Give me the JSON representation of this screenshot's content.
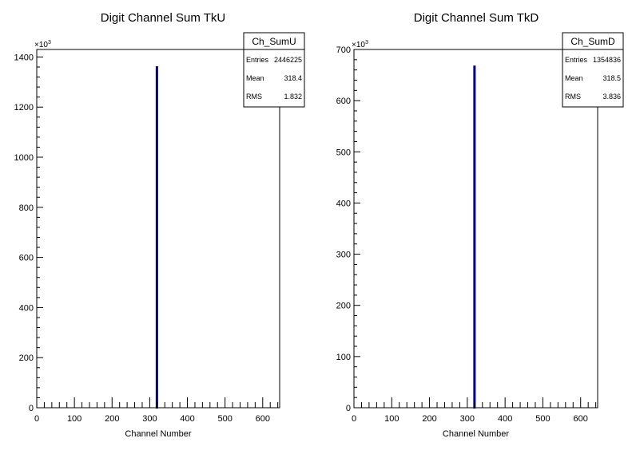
{
  "chart_data": [
    {
      "type": "bar",
      "title": "Digit Channel Sum TkU",
      "xlabel": "Channel Number",
      "ylabel": "",
      "y_multiplier": "×10",
      "y_multiplier_exp": "3",
      "xlim": [
        0,
        645
      ],
      "ylim": [
        0,
        1430
      ],
      "xticks": [
        0,
        100,
        200,
        300,
        400,
        500,
        600
      ],
      "yticks": [
        0,
        200,
        400,
        600,
        800,
        1000,
        1200,
        1400
      ],
      "bars": [
        {
          "x": 318,
          "value": 1360
        }
      ],
      "bar_color": "#000080",
      "stats": {
        "name": "Ch_SumU",
        "rows": [
          {
            "label": "Entries",
            "value": "2446225"
          },
          {
            "label": "Mean",
            "value": "318.4"
          },
          {
            "label": "RMS",
            "value": "1.832"
          }
        ]
      }
    },
    {
      "type": "bar",
      "title": "Digit Channel Sum TkD",
      "xlabel": "Channel Number",
      "ylabel": "",
      "y_multiplier": "×10",
      "y_multiplier_exp": "3",
      "xlim": [
        0,
        645
      ],
      "ylim": [
        0,
        700
      ],
      "xticks": [
        0,
        100,
        200,
        300,
        400,
        500,
        600
      ],
      "yticks": [
        0,
        100,
        200,
        300,
        400,
        500,
        600,
        700
      ],
      "bars": [
        {
          "x": 318,
          "value": 667
        }
      ],
      "bar_color": "#000080",
      "stats": {
        "name": "Ch_SumD",
        "rows": [
          {
            "label": "Entries",
            "value": "1354836"
          },
          {
            "label": "Mean",
            "value": "318.5"
          },
          {
            "label": "RMS",
            "value": "3.836"
          }
        ]
      }
    }
  ]
}
